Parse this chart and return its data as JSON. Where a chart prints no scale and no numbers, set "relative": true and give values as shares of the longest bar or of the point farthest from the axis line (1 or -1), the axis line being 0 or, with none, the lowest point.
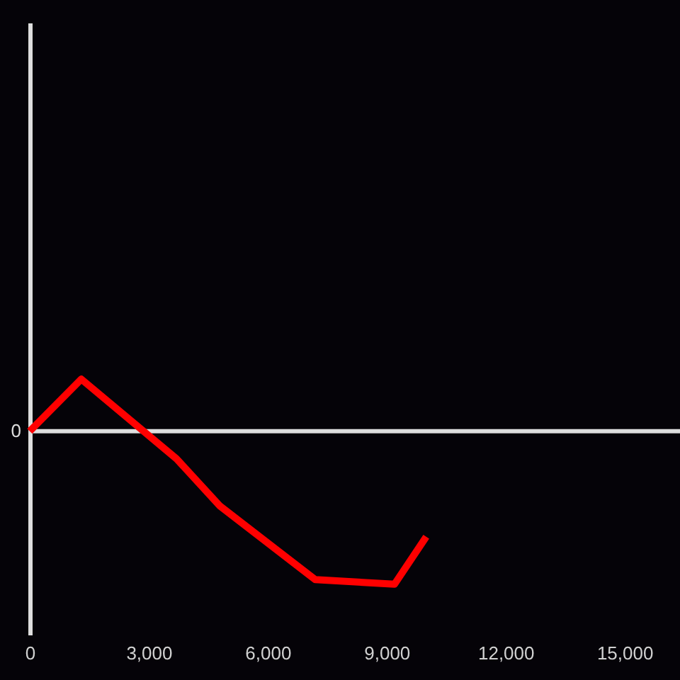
{
  "chart_data": {
    "type": "line",
    "relative": true,
    "x": [
      0,
      1300,
      3700,
      4800,
      7200,
      9200,
      10000
    ],
    "series": [
      {
        "color": "#ff0000",
        "values": [
          0,
          0.34,
          -0.18,
          -0.49,
          -0.97,
          -1,
          -0.69
        ]
      }
    ],
    "xlim": [
      0,
      16400
    ],
    "xticks": [
      0,
      {
        "value": 3000,
        "label": "3,000"
      },
      {
        "value": 6000,
        "label": "6,000"
      },
      {
        "value": 9000,
        "label": "9,000"
      },
      {
        "value": 12000,
        "label": "12,000"
      },
      {
        "value": 15000,
        "label": "15,000"
      }
    ],
    "ref_lines": [
      {
        "axis": "y",
        "value": 0,
        "label": "0",
        "color": "#dddddd"
      }
    ]
  }
}
